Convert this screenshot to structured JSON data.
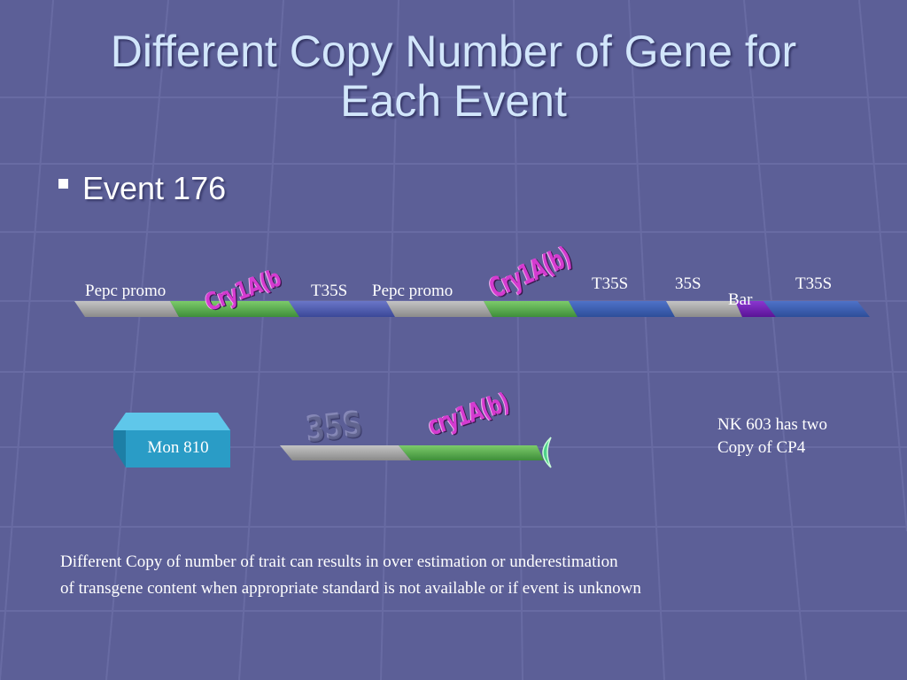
{
  "slide": {
    "title_line1": "Different Copy Number of Gene for",
    "title_line2": "Each Event",
    "bullet": "Event 176"
  },
  "event176": {
    "labels": {
      "pepc1": "Pepc promo",
      "cry1": "Cry1A(b",
      "t35s1": "T35S",
      "pepc2": "Pepc promo",
      "cry2": "Cry1A(b)",
      "t35s2": "T35S",
      "s35": "35S",
      "bar": "Bar",
      "t35s3": "T35S"
    }
  },
  "mon810": {
    "box_label": "Mon 810",
    "promoter_label": "35S",
    "gene_label": "cry1A(b)"
  },
  "note": {
    "line1": "NK 603 has two",
    "line2": "Copy of CP4"
  },
  "footer": {
    "line1": "Different Copy of number of trait can results in over estimation or underestimation",
    "line2": "of transgene content when appropriate standard is not available or if event is unknown"
  },
  "colors": {
    "background": "#5c5f97",
    "title": "#d2e6fb",
    "segment_gray": "#9a9a9a",
    "segment_green": "#5aa84e",
    "segment_blue": "#4a58a8",
    "segment_purple": "#6a1aa8",
    "box_teal": "#2a9cc6",
    "gene_label": "#d43bd0"
  }
}
